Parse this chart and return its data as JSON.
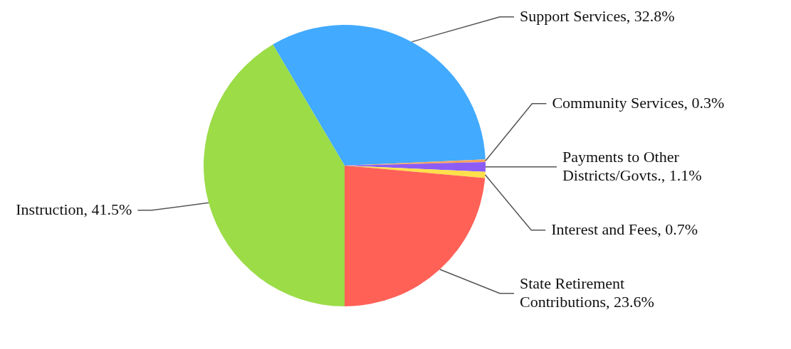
{
  "chart_data": {
    "type": "pie",
    "categories": [
      "Support Services",
      "Community Services",
      "Payments to Other Districts/Govts.",
      "Interest and Fees",
      "State Retirement Contributions",
      "Instruction"
    ],
    "values": [
      32.8,
      0.3,
      1.1,
      0.7,
      23.6,
      41.5
    ],
    "colors": [
      "#42aaff",
      "#f7a35c",
      "#8d5cf5",
      "#ffe04a",
      "#ff6157",
      "#9bdc47"
    ],
    "value_labels": [
      "32.8%",
      "0.3%",
      "1.1%",
      "0.7%",
      "23.6%",
      "41.5%"
    ]
  }
}
